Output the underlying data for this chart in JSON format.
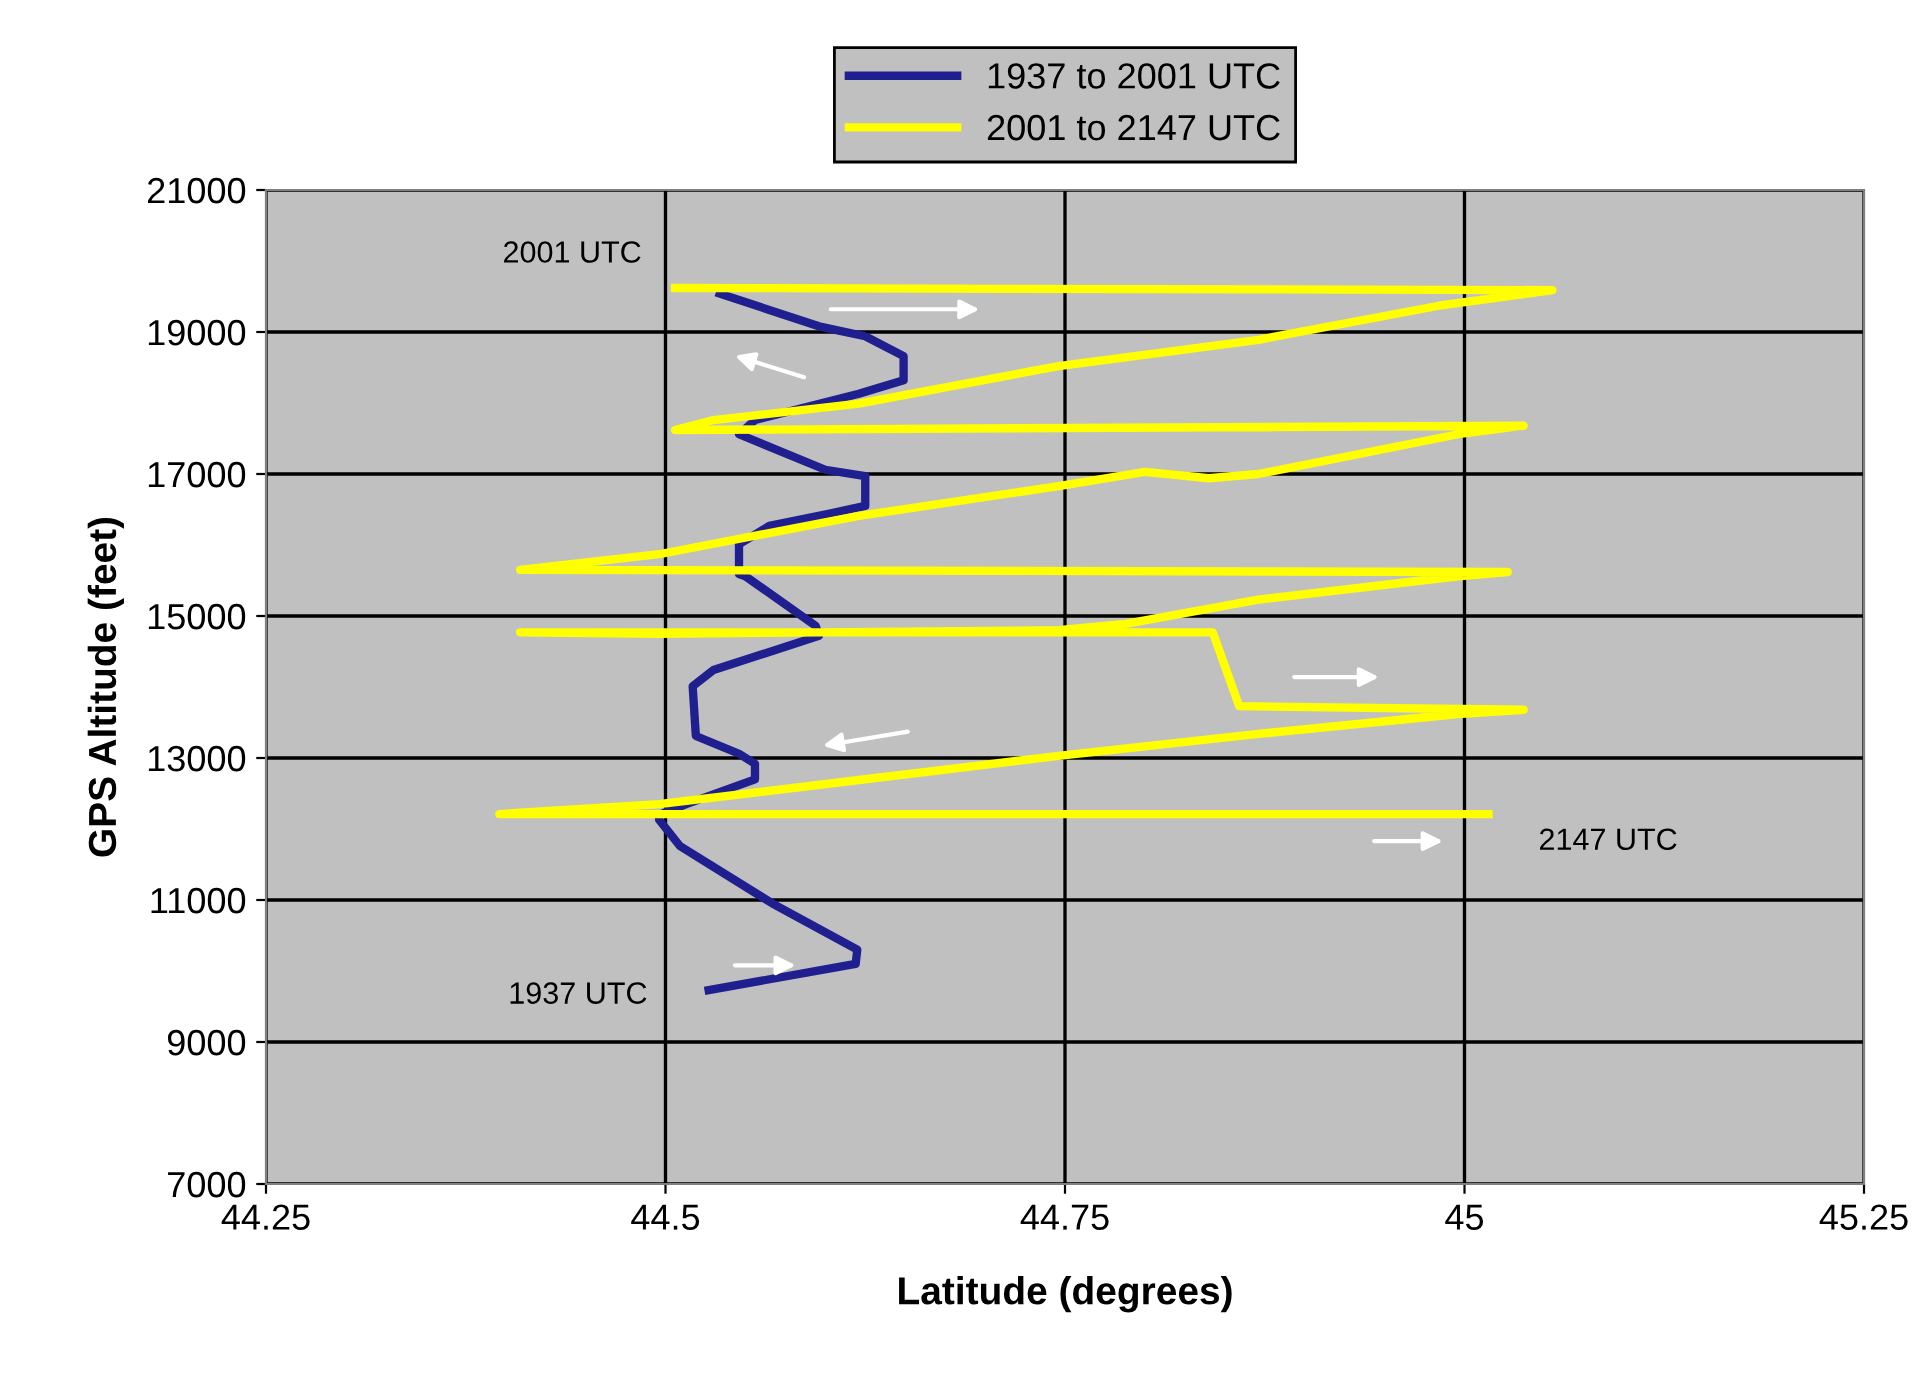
{
  "chart_data": {
    "type": "line",
    "xlabel": "Latitude (degrees)",
    "ylabel": "GPS Altitude (feet)",
    "xlim": [
      44.25,
      45.25
    ],
    "xticks": [
      44.25,
      44.5,
      44.75,
      45,
      45.25
    ],
    "ylim": [
      7000,
      21000
    ],
    "yticks": [
      7000,
      9000,
      11000,
      13000,
      15000,
      17000,
      19000,
      21000
    ],
    "grid": true,
    "legend": "top",
    "marker": "none",
    "line_style": "solid",
    "series": [
      {
        "name": "1937 to 2001 UTC",
        "color": "#1f1f8f",
        "x": [
          44.527,
          44.619,
          44.62,
          44.567,
          44.509,
          44.496,
          44.496,
          44.513,
          44.556,
          44.556,
          44.546,
          44.519,
          44.517,
          44.53,
          44.596,
          44.594,
          44.55,
          44.546,
          44.546,
          44.565,
          44.602,
          44.625,
          44.625,
          44.6,
          44.546,
          44.556,
          44.621,
          44.649,
          44.649,
          44.625,
          44.596,
          44.534
        ],
        "values": [
          9730,
          10100,
          10300,
          10950,
          11760,
          12130,
          12200,
          12350,
          12700,
          12920,
          13060,
          13310,
          14010,
          14240,
          14720,
          14860,
          15560,
          15590,
          16010,
          16270,
          16440,
          16550,
          16970,
          17060,
          17560,
          17760,
          18130,
          18320,
          18660,
          18940,
          19080,
          19540
        ]
      },
      {
        "name": "2001 to 2147 UTC",
        "color": "#ffff00",
        "x": [
          44.506,
          45.055,
          44.984,
          44.871,
          44.746,
          44.621,
          44.53,
          44.506,
          45.037,
          44.996,
          44.871,
          44.84,
          44.8,
          44.746,
          44.621,
          44.496,
          44.409,
          45.027,
          44.996,
          44.871,
          44.788,
          44.746,
          44.496,
          44.409,
          44.8425,
          44.859,
          45.037,
          44.996,
          44.871,
          44.746,
          44.621,
          44.496,
          44.396,
          45.015
        ],
        "values": [
          19620,
          19590,
          19370,
          18890,
          18520,
          17990,
          17760,
          17620,
          17680,
          17560,
          17000,
          16940,
          17030,
          16830,
          16410,
          15870,
          15650,
          15620,
          15560,
          15230,
          14890,
          14800,
          14750,
          14770,
          14770,
          13730,
          13680,
          13620,
          13340,
          13030,
          12690,
          12350,
          12210,
          12210
        ]
      }
    ],
    "annotations": [
      {
        "text": "2001 UTC",
        "x": 44.506,
        "y": 19620
      },
      {
        "text": "1937 UTC",
        "x": 44.527,
        "y": 9730
      },
      {
        "text": "2147 UTC",
        "x": 45.015,
        "y": 12210
      }
    ]
  }
}
